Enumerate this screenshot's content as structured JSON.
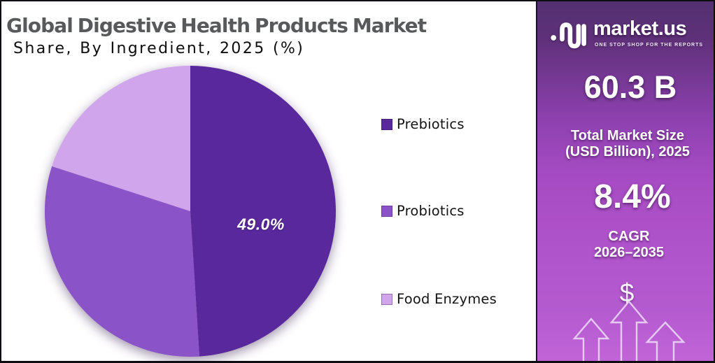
{
  "title": "Global Digestive Health Products Market",
  "subtitle": "Share, By Ingredient, 2025 (%)",
  "chart_data": {
    "type": "pie",
    "title": "Global Digestive Health Products Market",
    "subtitle": "Share, By Ingredient, 2025 (%)",
    "categories": [
      "Prebiotics",
      "Probiotics",
      "Food Enzymes"
    ],
    "values": [
      49.0,
      31.0,
      20.0
    ],
    "unit": "%",
    "colors": [
      "#59289d",
      "#8b53c8",
      "#d0a5ec"
    ],
    "start_angle_deg": 0,
    "direction": "clockwise",
    "shown_slice_label": "49.0%",
    "legend_position": "right"
  },
  "brand_panel": {
    "logo_text": "market.us",
    "logo_tagline": "ONE STOP SHOP FOR THE REPORTS",
    "market_size_value": "60.3 B",
    "market_size_label_line1": "Total Market Size",
    "market_size_label_line2": "(USD Billion), 2025",
    "cagr_value": "8.4%",
    "cagr_label_line1": "CAGR",
    "cagr_label_line2": "2026–2035",
    "currency_symbol": "$",
    "gradient_top": "#4e2a60",
    "gradient_bottom": "#c967de"
  }
}
